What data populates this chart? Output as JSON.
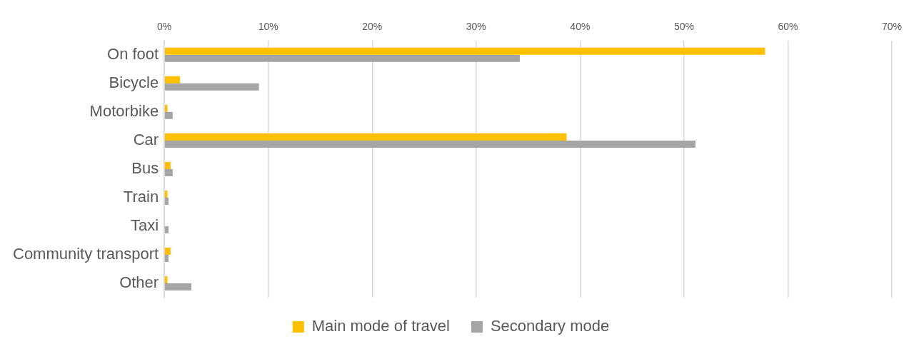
{
  "chart_data": {
    "type": "bar",
    "orientation": "horizontal",
    "categories": [
      "On foot",
      "Bicycle",
      "Motorbike",
      "Car",
      "Bus",
      "Train",
      "Taxi",
      "Community transport",
      "Other"
    ],
    "series": [
      {
        "name": "Main mode of travel",
        "color": "#ffc000",
        "values": [
          57.8,
          1.5,
          0.3,
          38.7,
          0.6,
          0.3,
          0,
          0.6,
          0.3
        ]
      },
      {
        "name": "Secondary mode",
        "color": "#a5a5a5",
        "values": [
          34.2,
          9.1,
          0.8,
          51.1,
          0.8,
          0.4,
          0.4,
          0.4,
          2.6
        ]
      }
    ],
    "xlim": [
      0,
      70
    ],
    "xticks": [
      {
        "value": 0,
        "label": "0%"
      },
      {
        "value": 10,
        "label": "10%"
      },
      {
        "value": 20,
        "label": "20%"
      },
      {
        "value": 30,
        "label": "30%"
      },
      {
        "value": 40,
        "label": "40%"
      },
      {
        "value": 50,
        "label": "50%"
      },
      {
        "value": 60,
        "label": "60%"
      },
      {
        "value": 70,
        "label": "70%"
      }
    ],
    "grid": "x",
    "legend": "bottom"
  }
}
